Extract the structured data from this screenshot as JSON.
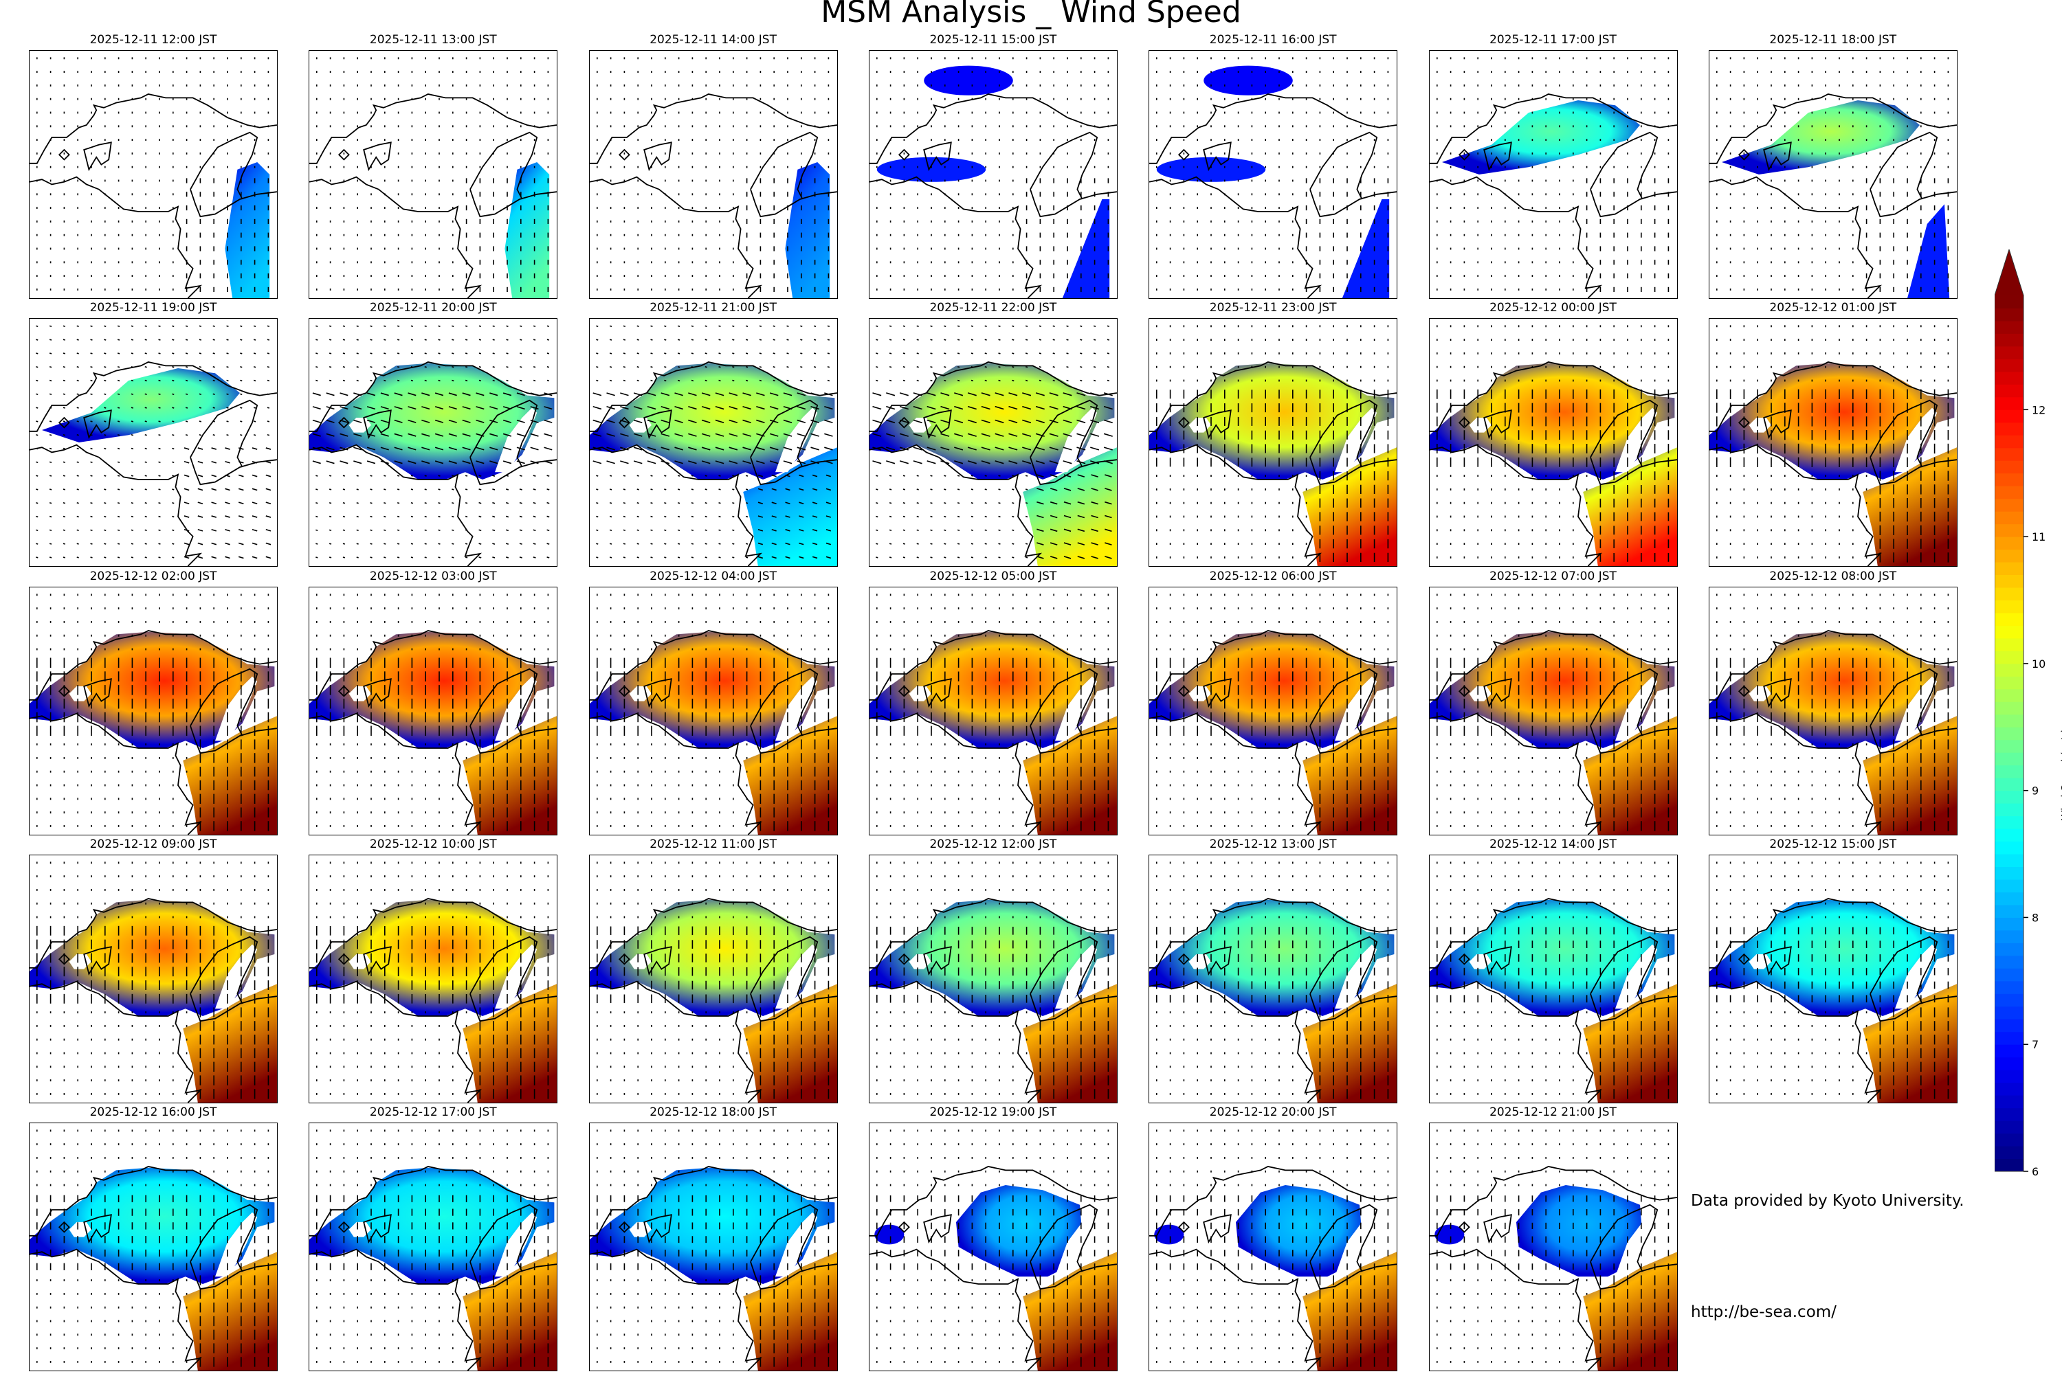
{
  "title": "MSM Analysis _ Wind Speed",
  "chart_data": {
    "type": "heatmap",
    "title": "MSM Analysis _ Wind Speed",
    "panel_titles": [
      "2025-12-11 12:00 JST",
      "2025-12-11 13:00 JST",
      "2025-12-11 14:00 JST",
      "2025-12-11 15:00 JST",
      "2025-12-11 16:00 JST",
      "2025-12-11 17:00 JST",
      "2025-12-11 18:00 JST",
      "2025-12-11 19:00 JST",
      "2025-12-11 20:00 JST",
      "2025-12-11 21:00 JST",
      "2025-12-11 22:00 JST",
      "2025-12-11 23:00 JST",
      "2025-12-12 00:00 JST",
      "2025-12-12 01:00 JST",
      "2025-12-12 02:00 JST",
      "2025-12-12 03:00 JST",
      "2025-12-12 04:00 JST",
      "2025-12-12 05:00 JST",
      "2025-12-12 06:00 JST",
      "2025-12-12 07:00 JST",
      "2025-12-12 08:00 JST",
      "2025-12-12 09:00 JST",
      "2025-12-12 10:00 JST",
      "2025-12-12 11:00 JST",
      "2025-12-12 12:00 JST",
      "2025-12-12 13:00 JST",
      "2025-12-12 14:00 JST",
      "2025-12-12 15:00 JST",
      "2025-12-12 16:00 JST",
      "2025-12-12 17:00 JST",
      "2025-12-12 18:00 JST",
      "2025-12-12 19:00 JST",
      "2025-12-12 20:00 JST",
      "2025-12-12 21:00 JST"
    ],
    "colorbar": {
      "label": "Wind Speed (m/s)",
      "ticks": [
        "6",
        "7",
        "8",
        "9",
        "10",
        "11",
        "12"
      ],
      "range": [
        6,
        12.9
      ],
      "colormap": "jet",
      "extend": "max"
    }
  },
  "credits": {
    "provider": "Data provided by Kyoto University.",
    "url": "http://be-sea.com/"
  }
}
